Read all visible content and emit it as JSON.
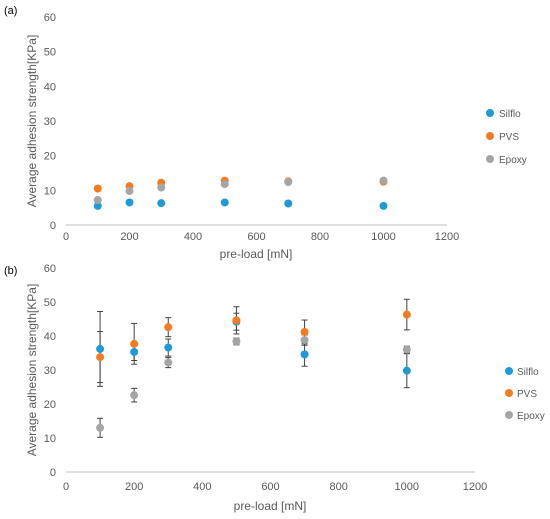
{
  "chart_data": [
    {
      "type": "scatter",
      "panel_label": "(a)",
      "title": "",
      "xlabel": "pre-load [mN]",
      "ylabel": "Average adhesion strength[KPa]",
      "xlim": [
        0,
        1200
      ],
      "ylim": [
        0,
        60
      ],
      "x_ticks": [
        "0",
        "200",
        "400",
        "600",
        "800",
        "1000",
        "1200"
      ],
      "y_ticks": [
        "0",
        "10",
        "20",
        "30",
        "40",
        "50",
        "60"
      ],
      "grid": false,
      "legend_position": "right",
      "series": [
        {
          "name": "Silflo",
          "color": "#1f9ad6",
          "points": [
            [
              100,
              5.5
            ],
            [
              200,
              6.5
            ],
            [
              300,
              6.3
            ],
            [
              500,
              6.5
            ],
            [
              700,
              6.2
            ],
            [
              1000,
              5.5
            ]
          ]
        },
        {
          "name": "PVS",
          "color": "#f47b20",
          "points": [
            [
              100,
              10.5
            ],
            [
              200,
              11.2
            ],
            [
              300,
              12.2
            ],
            [
              500,
              12.8
            ],
            [
              700,
              12.6
            ],
            [
              1000,
              12.5
            ]
          ]
        },
        {
          "name": "Epoxy",
          "color": "#a5a5a5",
          "points": [
            [
              100,
              7.2
            ],
            [
              200,
              9.8
            ],
            [
              300,
              10.8
            ],
            [
              500,
              11.8
            ],
            [
              700,
              12.4
            ],
            [
              1000,
              12.8
            ]
          ]
        }
      ]
    },
    {
      "type": "scatter",
      "panel_label": "(b)",
      "title": "",
      "xlabel": "pre-load [mN]",
      "ylabel": "Average adhesion strength[KPa]",
      "xlim": [
        0,
        1200
      ],
      "ylim": [
        0,
        60
      ],
      "x_ticks": [
        "0",
        "200",
        "400",
        "600",
        "800",
        "1000",
        "1200"
      ],
      "y_ticks": [
        "0",
        "10",
        "20",
        "30",
        "40",
        "50",
        "60"
      ],
      "grid": false,
      "legend_position": "right",
      "error_bar_color": "#404040",
      "series": [
        {
          "name": "Silflo",
          "color": "#1f9ad6",
          "points": [
            [
              100,
              36.2
            ],
            [
              200,
              35.3
            ],
            [
              300,
              36.6
            ],
            [
              500,
              44.2
            ],
            [
              700,
              34.6
            ],
            [
              1000,
              29.8
            ]
          ],
          "errors": [
            11.0,
            2.5,
            2.5,
            2.5,
            3.5,
            5.0
          ]
        },
        {
          "name": "PVS",
          "color": "#f47b20",
          "points": [
            [
              100,
              33.8
            ],
            [
              200,
              37.7
            ],
            [
              300,
              42.6
            ],
            [
              500,
              44.6
            ],
            [
              700,
              41.2
            ],
            [
              1000,
              46.3
            ]
          ],
          "errors": [
            7.5,
            6.0,
            2.8,
            4.0,
            3.5,
            4.5
          ]
        },
        {
          "name": "Epoxy",
          "color": "#a5a5a5",
          "points": [
            [
              100,
              13.0
            ],
            [
              200,
              22.6
            ],
            [
              300,
              32.2
            ],
            [
              500,
              38.4
            ],
            [
              700,
              38.8
            ],
            [
              1000,
              36.0
            ]
          ],
          "errors": [
            2.8,
            2.0,
            1.5,
            1.0,
            1.5,
            1.0
          ]
        }
      ]
    }
  ]
}
